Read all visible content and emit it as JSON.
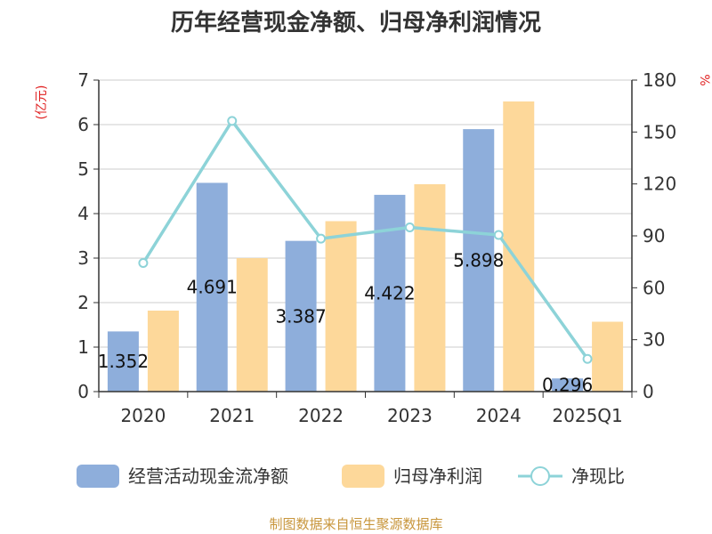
{
  "chart_data": {
    "type": "bar",
    "title": "历年经营现金净额、归母净利润情况",
    "categories": [
      "2020",
      "2021",
      "2022",
      "2023",
      "2024",
      "2025Q1"
    ],
    "series": [
      {
        "name": "经营活动现金流净额",
        "type": "bar",
        "axis": "left",
        "color": "#8eaedb",
        "values": [
          1.352,
          4.691,
          3.387,
          4.422,
          5.898,
          0.296
        ],
        "labels": [
          "1.352",
          "4.691",
          "3.387",
          "4.422",
          "5.898",
          "0.296"
        ]
      },
      {
        "name": "归母净利润",
        "type": "bar",
        "axis": "left",
        "color": "#fdd89a",
        "values": [
          1.82,
          3.0,
          3.83,
          4.66,
          6.52,
          1.57
        ]
      },
      {
        "name": "净现比",
        "type": "line",
        "axis": "right",
        "color": "#8dd3d8",
        "values": [
          74.3,
          156.4,
          88.4,
          94.9,
          90.5,
          18.9
        ]
      }
    ],
    "y_left": {
      "label": "(亿元)",
      "min": 0,
      "max": 7,
      "ticks": [
        "0",
        "1",
        "2",
        "3",
        "4",
        "5",
        "6",
        "7"
      ]
    },
    "y_right": {
      "label": "%",
      "min": 0,
      "max": 180,
      "ticks": [
        "0",
        "30",
        "60",
        "90",
        "120",
        "150",
        "180"
      ]
    },
    "grid": true,
    "legend_position": "bottom"
  },
  "source_text": "制图数据来自恒生聚源数据库",
  "colors": {
    "unit": "#e02020",
    "source": "#c8963c",
    "grid": "#cccccc",
    "axis": "#333333"
  }
}
